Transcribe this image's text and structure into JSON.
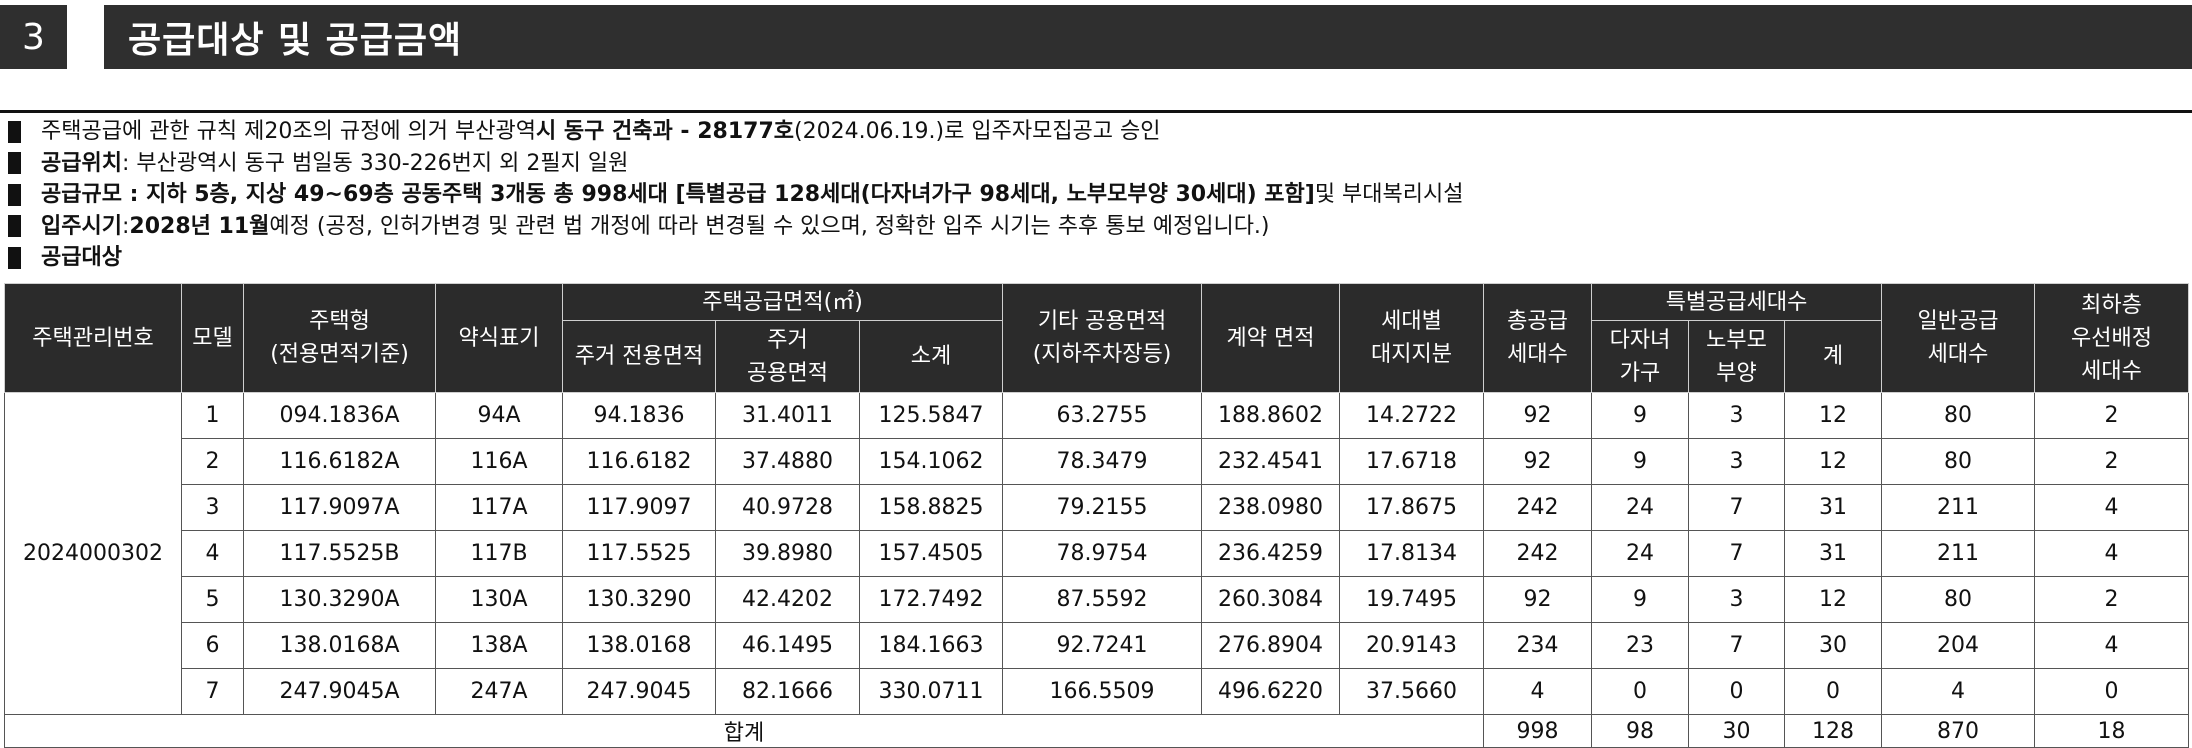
{
  "section": {
    "number": "3",
    "title": "공급대상 및 공급금액"
  },
  "bullets": [
    {
      "pre": "주택공급에 관한 규칙 제20조의 규정에 의거 부산광역",
      "b1": "시 동구 건축과 - 28177호",
      "mid": "(2024.06.19.)로 입주자모집공고 승인",
      "b2": "",
      "post": ""
    },
    {
      "pre": "",
      "b1": "공급위치",
      "mid": " : 부산광역시 동구 범일동 330-226번지 외 2필지 일원",
      "b2": "",
      "post": ""
    },
    {
      "pre": "",
      "b1": "공급규모 : 지하 5층, 지상 49~69층 공동주택 3개동 총 998세대 [특별공급 128세대(다자녀가구 98세대, 노부모부양 30세대) 포함]",
      "mid": " 및 부대복리시설",
      "b2": "",
      "post": ""
    },
    {
      "pre": "",
      "b1": "입주시기",
      "mid": " : ",
      "b2": "2028년 11월",
      "post": " 예정 (공정, 인허가변경 및 관련 법 개정에 따라 변경될 수 있으며, 정확한 입주 시기는 추후 통보 예정입니다.)"
    },
    {
      "pre": "",
      "b1": "공급대상",
      "mid": "",
      "b2": "",
      "post": ""
    }
  ],
  "table": {
    "headers": {
      "housing_no": "주택관리번호",
      "model": "모델",
      "type_l1": "주택형",
      "type_l2": "(전용면적기준)",
      "short": "약식표기",
      "area_group": "주택공급면적(㎡)",
      "excl": "주거 전용면적",
      "common_l1": "주거",
      "common_l2": "공용면적",
      "subtotal": "소계",
      "other_l1": "기타 공용면적",
      "other_l2": "(지하주차장등)",
      "contract": "계약 면적",
      "land_l1": "세대별",
      "land_l2": "대지지분",
      "total_l1": "총공급",
      "total_l2": "세대수",
      "special_group": "특별공급세대수",
      "multi_l1": "다자녀",
      "multi_l2": "가구",
      "parent_l1": "노부모",
      "parent_l2": "부양",
      "sum": "계",
      "general_l1": "일반공급",
      "general_l2": "세대수",
      "lowest_l1": "최하층",
      "lowest_l2": "우선배정",
      "lowest_l3": "세대수"
    },
    "housing_no": "2024000302",
    "rows": [
      {
        "model": "1",
        "type": "094.1836A",
        "short": "94A",
        "excl": "94.1836",
        "common": "31.4011",
        "subtotal": "125.5847",
        "other": "63.2755",
        "contract": "188.8602",
        "land": "14.2722",
        "total": "92",
        "multi": "9",
        "parent": "3",
        "sum": "12",
        "general": "80",
        "lowest": "2"
      },
      {
        "model": "2",
        "type": "116.6182A",
        "short": "116A",
        "excl": "116.6182",
        "common": "37.4880",
        "subtotal": "154.1062",
        "other": "78.3479",
        "contract": "232.4541",
        "land": "17.6718",
        "total": "92",
        "multi": "9",
        "parent": "3",
        "sum": "12",
        "general": "80",
        "lowest": "2"
      },
      {
        "model": "3",
        "type": "117.9097A",
        "short": "117A",
        "excl": "117.9097",
        "common": "40.9728",
        "subtotal": "158.8825",
        "other": "79.2155",
        "contract": "238.0980",
        "land": "17.8675",
        "total": "242",
        "multi": "24",
        "parent": "7",
        "sum": "31",
        "general": "211",
        "lowest": "4"
      },
      {
        "model": "4",
        "type": "117.5525B",
        "short": "117B",
        "excl": "117.5525",
        "common": "39.8980",
        "subtotal": "157.4505",
        "other": "78.9754",
        "contract": "236.4259",
        "land": "17.8134",
        "total": "242",
        "multi": "24",
        "parent": "7",
        "sum": "31",
        "general": "211",
        "lowest": "4"
      },
      {
        "model": "5",
        "type": "130.3290A",
        "short": "130A",
        "excl": "130.3290",
        "common": "42.4202",
        "subtotal": "172.7492",
        "other": "87.5592",
        "contract": "260.3084",
        "land": "19.7495",
        "total": "92",
        "multi": "9",
        "parent": "3",
        "sum": "12",
        "general": "80",
        "lowest": "2"
      },
      {
        "model": "6",
        "type": "138.0168A",
        "short": "138A",
        "excl": "138.0168",
        "common": "46.1495",
        "subtotal": "184.1663",
        "other": "92.7241",
        "contract": "276.8904",
        "land": "20.9143",
        "total": "234",
        "multi": "23",
        "parent": "7",
        "sum": "30",
        "general": "204",
        "lowest": "4"
      },
      {
        "model": "7",
        "type": "247.9045A",
        "short": "247A",
        "excl": "247.9045",
        "common": "82.1666",
        "subtotal": "330.0711",
        "other": "166.5509",
        "contract": "496.6220",
        "land": "37.5660",
        "total": "4",
        "multi": "0",
        "parent": "0",
        "sum": "0",
        "general": "4",
        "lowest": "0"
      }
    ],
    "totals": {
      "label": "합계",
      "total": "998",
      "multi": "98",
      "parent": "30",
      "sum": "128",
      "general": "870",
      "lowest": "18"
    }
  }
}
